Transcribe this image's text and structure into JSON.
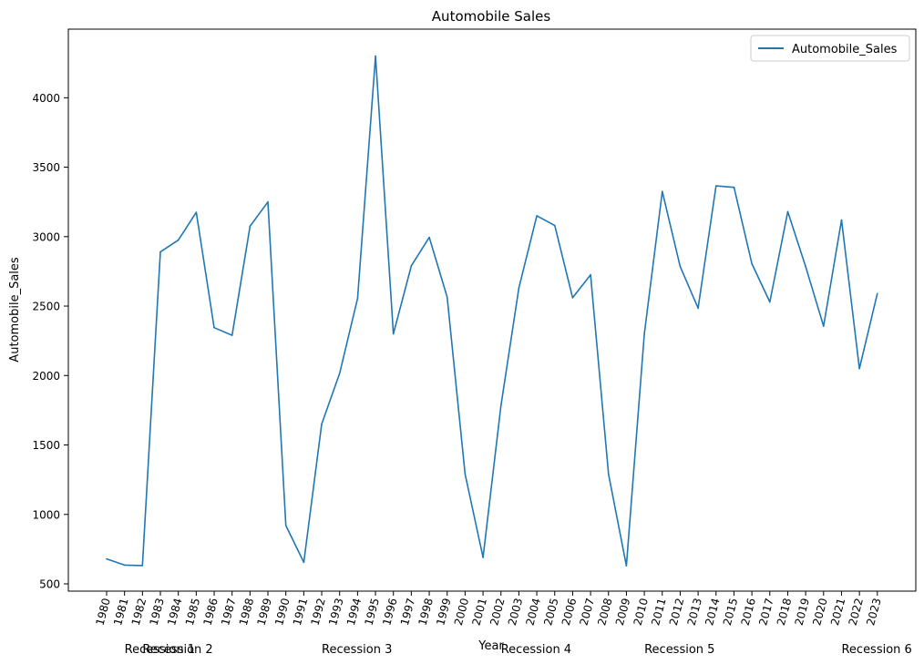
{
  "chart_data": {
    "type": "line",
    "title": "Automobile Sales",
    "xlabel": "Year",
    "ylabel": "Automobile_Sales",
    "legend": {
      "entries": [
        "Automobile_Sales"
      ],
      "placement": "top-right"
    },
    "grid": false,
    "ylim": [
      500,
      4300
    ],
    "y_ticks": [
      500,
      1000,
      1500,
      2000,
      2500,
      3000,
      3500,
      4000
    ],
    "categories": [
      "1980",
      "1981",
      "1982",
      "1983",
      "1984",
      "1985",
      "1986",
      "1987",
      "1988",
      "1989",
      "1990",
      "1991",
      "1992",
      "1993",
      "1994",
      "1995",
      "1996",
      "1997",
      "1998",
      "1999",
      "2000",
      "2001",
      "2002",
      "2003",
      "2004",
      "2005",
      "2006",
      "2007",
      "2008",
      "2009",
      "2010",
      "2011",
      "2012",
      "2013",
      "2014",
      "2015",
      "2016",
      "2017",
      "2018",
      "2019",
      "2020",
      "2021",
      "2022",
      "2023"
    ],
    "series": [
      {
        "name": "Automobile_Sales",
        "color": "#1f77b4",
        "values": [
          680,
          635,
          632,
          2890,
          2975,
          3175,
          2345,
          2290,
          3075,
          3250,
          920,
          655,
          1650,
          2015,
          2555,
          4300,
          2300,
          2790,
          2995,
          2565,
          1290,
          690,
          1780,
          2630,
          3150,
          3080,
          2560,
          2725,
          1290,
          630,
          2300,
          3325,
          2785,
          2485,
          3365,
          3355,
          2805,
          2530,
          3180,
          2785,
          2355,
          3120,
          2050,
          2590
        ]
      }
    ],
    "annotations": [
      {
        "text": "Recession 1",
        "x": "1981"
      },
      {
        "text": "Recession 2",
        "x": "1982"
      },
      {
        "text": "Recession 3",
        "x": "1992"
      },
      {
        "text": "Recession 4",
        "x": "2002"
      },
      {
        "text": "Recession 5",
        "x": "2010"
      },
      {
        "text": "Recession 6",
        "x": "2021"
      }
    ]
  },
  "colors": {
    "line": "#1f77b4",
    "axes": "#000000",
    "background": "#ffffff"
  }
}
